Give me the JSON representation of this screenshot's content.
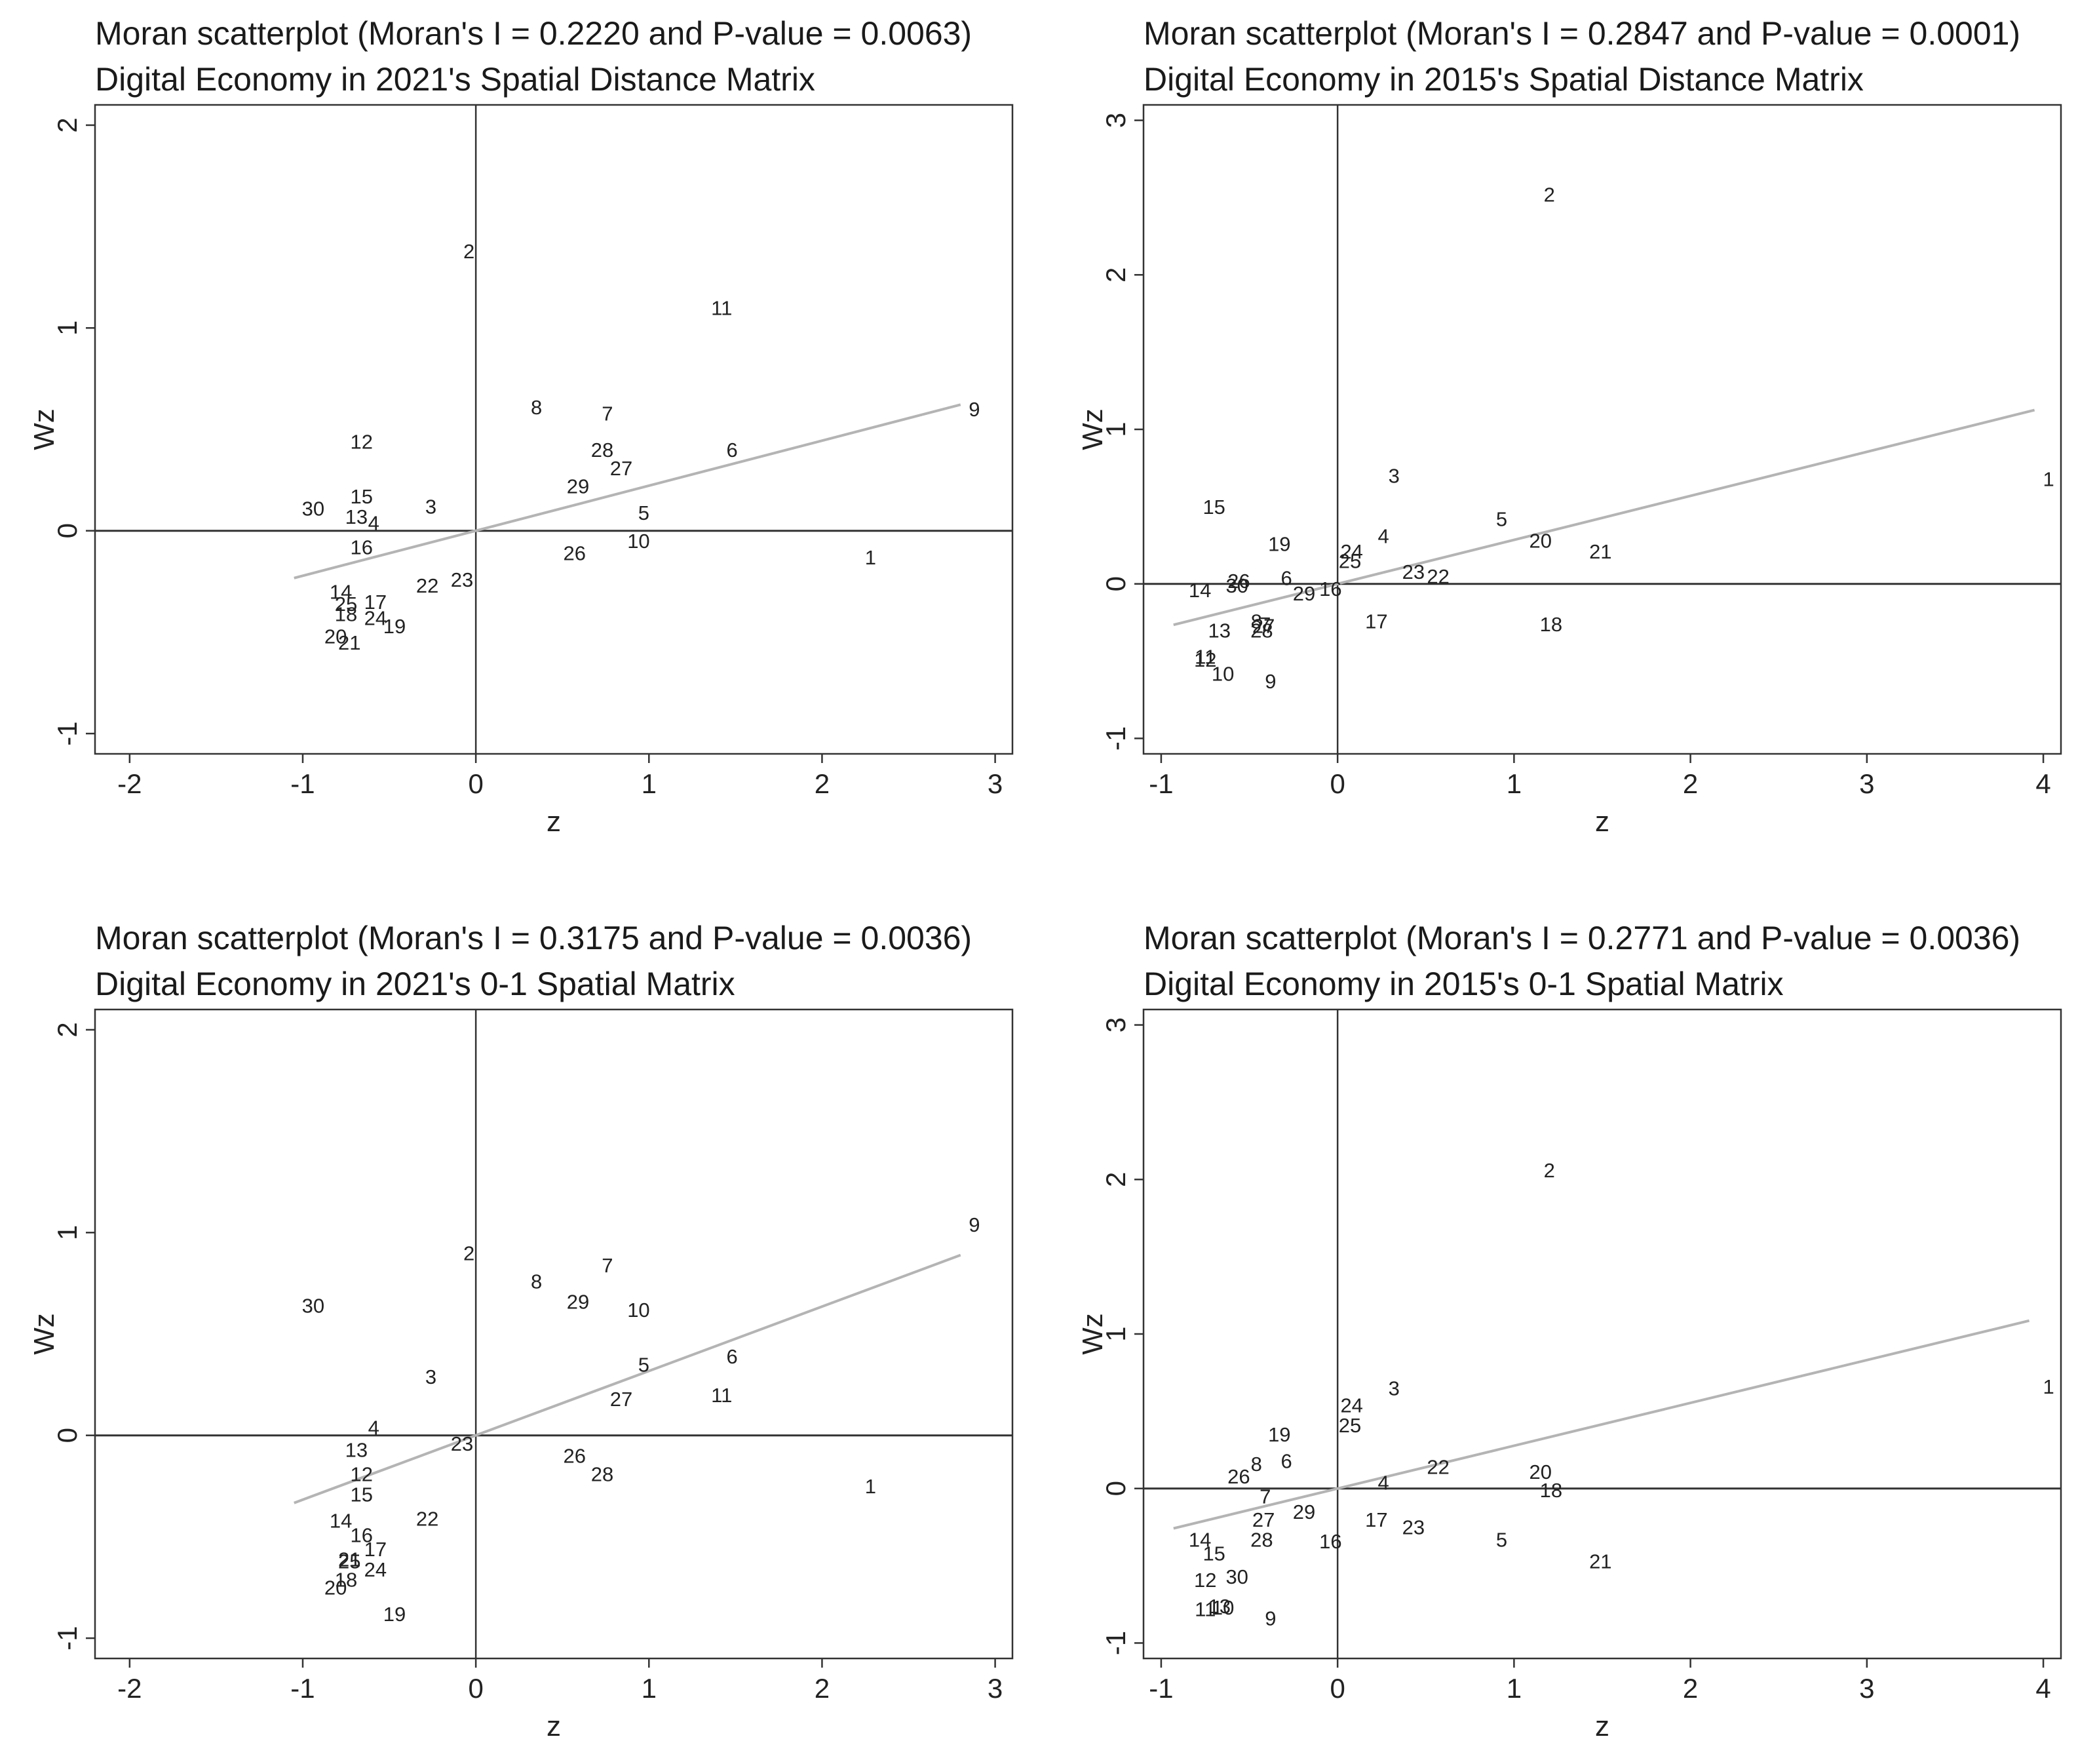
{
  "chart_data": [
    {
      "type": "scatter",
      "title": "Moran scatterplot (Moran's I = 0.2220 and P-value = 0.0063)",
      "subtitle": "Digital Economy in 2021's Spatial Distance Matrix",
      "xlabel": "z",
      "ylabel": "Wz",
      "xlim": [
        -2.2,
        3.1
      ],
      "ylim": [
        -1.1,
        2.1
      ],
      "xticks": [
        "-2",
        "-1",
        "0",
        "1",
        "2",
        "3"
      ],
      "yticks": [
        "-1",
        "0",
        "1",
        "2"
      ],
      "xtick_values": [
        -2,
        -1,
        0,
        1,
        2,
        3
      ],
      "ytick_values": [
        -1,
        0,
        1,
        2
      ],
      "fit_line": {
        "x": [
          -1.05,
          2.8
        ],
        "y": [
          -0.233,
          0.622
        ]
      },
      "points": [
        {
          "label": "1",
          "x": 2.28,
          "y": -0.13
        },
        {
          "label": "2",
          "x": -0.04,
          "y": 1.38
        },
        {
          "label": "3",
          "x": -0.26,
          "y": 0.12
        },
        {
          "label": "4",
          "x": -0.59,
          "y": 0.04
        },
        {
          "label": "5",
          "x": 0.97,
          "y": 0.09
        },
        {
          "label": "6",
          "x": 1.48,
          "y": 0.4
        },
        {
          "label": "7",
          "x": 0.76,
          "y": 0.58
        },
        {
          "label": "8",
          "x": 0.35,
          "y": 0.61
        },
        {
          "label": "9",
          "x": 2.88,
          "y": 0.6
        },
        {
          "label": "10",
          "x": 0.94,
          "y": -0.05
        },
        {
          "label": "11",
          "x": 1.42,
          "y": 1.1
        },
        {
          "label": "12",
          "x": -0.66,
          "y": 0.44
        },
        {
          "label": "13",
          "x": -0.69,
          "y": 0.07
        },
        {
          "label": "14",
          "x": -0.78,
          "y": -0.3
        },
        {
          "label": "15",
          "x": -0.66,
          "y": 0.17
        },
        {
          "label": "16",
          "x": -0.66,
          "y": -0.08
        },
        {
          "label": "17",
          "x": -0.58,
          "y": -0.35
        },
        {
          "label": "18",
          "x": -0.75,
          "y": -0.41
        },
        {
          "label": "19",
          "x": -0.47,
          "y": -0.47
        },
        {
          "label": "20",
          "x": -0.81,
          "y": -0.52
        },
        {
          "label": "21",
          "x": -0.73,
          "y": -0.55
        },
        {
          "label": "22",
          "x": -0.28,
          "y": -0.27
        },
        {
          "label": "23",
          "x": -0.08,
          "y": -0.24
        },
        {
          "label": "24",
          "x": -0.58,
          "y": -0.43
        },
        {
          "label": "25",
          "x": -0.75,
          "y": -0.36
        },
        {
          "label": "26",
          "x": 0.57,
          "y": -0.11
        },
        {
          "label": "27",
          "x": 0.84,
          "y": 0.31
        },
        {
          "label": "28",
          "x": 0.73,
          "y": 0.4
        },
        {
          "label": "29",
          "x": 0.59,
          "y": 0.22
        },
        {
          "label": "30",
          "x": -0.94,
          "y": 0.11
        }
      ]
    },
    {
      "type": "scatter",
      "title": "Moran scatterplot (Moran's I = 0.2847 and P-value = 0.0001)",
      "subtitle": "Digital Economy in 2015's Spatial Distance Matrix",
      "xlabel": "z",
      "ylabel": "Wz",
      "xlim": [
        -1.1,
        4.1
      ],
      "ylim": [
        -1.1,
        3.1
      ],
      "xticks": [
        "-1",
        "0",
        "1",
        "2",
        "3",
        "4"
      ],
      "yticks": [
        "-1",
        "0",
        "1",
        "2",
        "3"
      ],
      "xtick_values": [
        -1,
        0,
        1,
        2,
        3,
        4
      ],
      "ytick_values": [
        -1,
        0,
        1,
        2,
        3
      ],
      "fit_line": {
        "x": [
          -0.93,
          3.95
        ],
        "y": [
          -0.265,
          1.125
        ]
      },
      "points": [
        {
          "label": "1",
          "x": 4.03,
          "y": 0.68
        },
        {
          "label": "2",
          "x": 1.2,
          "y": 2.52
        },
        {
          "label": "3",
          "x": 0.32,
          "y": 0.7
        },
        {
          "label": "4",
          "x": 0.26,
          "y": 0.31
        },
        {
          "label": "5",
          "x": 0.93,
          "y": 0.42
        },
        {
          "label": "6",
          "x": -0.29,
          "y": 0.04
        },
        {
          "label": "7",
          "x": -0.41,
          "y": -0.26
        },
        {
          "label": "8",
          "x": -0.46,
          "y": -0.24
        },
        {
          "label": "9",
          "x": -0.38,
          "y": -0.63
        },
        {
          "label": "10",
          "x": -0.65,
          "y": -0.58
        },
        {
          "label": "11",
          "x": -0.75,
          "y": -0.47
        },
        {
          "label": "12",
          "x": -0.75,
          "y": -0.49
        },
        {
          "label": "13",
          "x": -0.67,
          "y": -0.3
        },
        {
          "label": "14",
          "x": -0.78,
          "y": -0.04
        },
        {
          "label": "15",
          "x": -0.7,
          "y": 0.5
        },
        {
          "label": "16",
          "x": -0.04,
          "y": -0.03
        },
        {
          "label": "17",
          "x": 0.22,
          "y": -0.24
        },
        {
          "label": "18",
          "x": 1.21,
          "y": -0.26
        },
        {
          "label": "19",
          "x": -0.33,
          "y": 0.26
        },
        {
          "label": "20",
          "x": 1.15,
          "y": 0.28
        },
        {
          "label": "21",
          "x": 1.49,
          "y": 0.21
        },
        {
          "label": "22",
          "x": 0.57,
          "y": 0.05
        },
        {
          "label": "23",
          "x": 0.43,
          "y": 0.08
        },
        {
          "label": "24",
          "x": 0.08,
          "y": 0.21
        },
        {
          "label": "25",
          "x": 0.07,
          "y": 0.15
        },
        {
          "label": "26",
          "x": -0.56,
          "y": 0.02
        },
        {
          "label": "27",
          "x": -0.42,
          "y": -0.27
        },
        {
          "label": "28",
          "x": -0.43,
          "y": -0.3
        },
        {
          "label": "29",
          "x": -0.19,
          "y": -0.06
        },
        {
          "label": "30",
          "x": -0.57,
          "y": -0.01
        }
      ]
    },
    {
      "type": "scatter",
      "title": "Moran scatterplot (Moran's I = 0.3175 and P-value = 0.0036)",
      "subtitle": "Digital Economy in 2021's 0-1 Spatial Matrix",
      "xlabel": "z",
      "ylabel": "Wz",
      "xlim": [
        -2.2,
        3.1
      ],
      "ylim": [
        -1.1,
        2.1
      ],
      "xticks": [
        "-2",
        "-1",
        "0",
        "1",
        "2",
        "3"
      ],
      "yticks": [
        "-1",
        "0",
        "1",
        "2"
      ],
      "xtick_values": [
        -2,
        -1,
        0,
        1,
        2,
        3
      ],
      "ytick_values": [
        -1,
        0,
        1,
        2
      ],
      "fit_line": {
        "x": [
          -1.05,
          2.8
        ],
        "y": [
          -0.333,
          0.889
        ]
      },
      "points": [
        {
          "label": "1",
          "x": 2.28,
          "y": -0.25
        },
        {
          "label": "2",
          "x": -0.04,
          "y": 0.9
        },
        {
          "label": "3",
          "x": -0.26,
          "y": 0.29
        },
        {
          "label": "4",
          "x": -0.59,
          "y": 0.04
        },
        {
          "label": "5",
          "x": 0.97,
          "y": 0.35
        },
        {
          "label": "6",
          "x": 1.48,
          "y": 0.39
        },
        {
          "label": "7",
          "x": 0.76,
          "y": 0.84
        },
        {
          "label": "8",
          "x": 0.35,
          "y": 0.76
        },
        {
          "label": "9",
          "x": 2.88,
          "y": 1.04
        },
        {
          "label": "10",
          "x": 0.94,
          "y": 0.62
        },
        {
          "label": "11",
          "x": 1.42,
          "y": 0.2
        },
        {
          "label": "12",
          "x": -0.66,
          "y": -0.19
        },
        {
          "label": "13",
          "x": -0.69,
          "y": -0.07
        },
        {
          "label": "14",
          "x": -0.78,
          "y": -0.42
        },
        {
          "label": "15",
          "x": -0.66,
          "y": -0.29
        },
        {
          "label": "16",
          "x": -0.66,
          "y": -0.49
        },
        {
          "label": "17",
          "x": -0.58,
          "y": -0.56
        },
        {
          "label": "18",
          "x": -0.75,
          "y": -0.71
        },
        {
          "label": "19",
          "x": -0.47,
          "y": -0.88
        },
        {
          "label": "20",
          "x": -0.81,
          "y": -0.75
        },
        {
          "label": "21",
          "x": -0.73,
          "y": -0.61
        },
        {
          "label": "22",
          "x": -0.28,
          "y": -0.41
        },
        {
          "label": "23",
          "x": -0.08,
          "y": -0.04
        },
        {
          "label": "24",
          "x": -0.58,
          "y": -0.66
        },
        {
          "label": "25",
          "x": -0.73,
          "y": -0.62
        },
        {
          "label": "26",
          "x": 0.57,
          "y": -0.1
        },
        {
          "label": "27",
          "x": 0.84,
          "y": 0.18
        },
        {
          "label": "28",
          "x": 0.73,
          "y": -0.19
        },
        {
          "label": "29",
          "x": 0.59,
          "y": 0.66
        },
        {
          "label": "30",
          "x": -0.94,
          "y": 0.64
        }
      ]
    },
    {
      "type": "scatter",
      "title": "Moran scatterplot (Moran's I = 0.2771 and P-value = 0.0036)",
      "subtitle": "Digital Economy in 2015's 0-1 Spatial Matrix",
      "xlabel": "z",
      "ylabel": "Wz",
      "xlim": [
        -1.1,
        4.1
      ],
      "ylim": [
        -1.1,
        3.1
      ],
      "xticks": [
        "-1",
        "0",
        "1",
        "2",
        "3",
        "4"
      ],
      "yticks": [
        "-1",
        "0",
        "1",
        "2",
        "3"
      ],
      "xtick_values": [
        -1,
        0,
        1,
        2,
        3,
        4
      ],
      "ytick_values": [
        -1,
        0,
        1,
        2,
        3
      ],
      "fit_line": {
        "x": [
          -0.93,
          3.92
        ],
        "y": [
          -0.258,
          1.086
        ]
      },
      "points": [
        {
          "label": "1",
          "x": 4.03,
          "y": 0.66
        },
        {
          "label": "2",
          "x": 1.2,
          "y": 2.06
        },
        {
          "label": "3",
          "x": 0.32,
          "y": 0.65
        },
        {
          "label": "4",
          "x": 0.26,
          "y": 0.04
        },
        {
          "label": "5",
          "x": 0.93,
          "y": -0.33
        },
        {
          "label": "6",
          "x": -0.29,
          "y": 0.18
        },
        {
          "label": "7",
          "x": -0.41,
          "y": -0.05
        },
        {
          "label": "8",
          "x": -0.46,
          "y": 0.16
        },
        {
          "label": "9",
          "x": -0.38,
          "y": -0.84
        },
        {
          "label": "10",
          "x": -0.65,
          "y": -0.77
        },
        {
          "label": "11",
          "x": -0.75,
          "y": -0.78
        },
        {
          "label": "12",
          "x": -0.75,
          "y": -0.59
        },
        {
          "label": "13",
          "x": -0.67,
          "y": -0.76
        },
        {
          "label": "14",
          "x": -0.78,
          "y": -0.33
        },
        {
          "label": "15",
          "x": -0.7,
          "y": -0.42
        },
        {
          "label": "16",
          "x": -0.04,
          "y": -0.34
        },
        {
          "label": "17",
          "x": 0.22,
          "y": -0.2
        },
        {
          "label": "18",
          "x": 1.21,
          "y": -0.01
        },
        {
          "label": "19",
          "x": -0.33,
          "y": 0.35
        },
        {
          "label": "20",
          "x": 1.15,
          "y": 0.11
        },
        {
          "label": "21",
          "x": 1.49,
          "y": -0.47
        },
        {
          "label": "22",
          "x": 0.57,
          "y": 0.14
        },
        {
          "label": "23",
          "x": 0.43,
          "y": -0.25
        },
        {
          "label": "24",
          "x": 0.08,
          "y": 0.54
        },
        {
          "label": "25",
          "x": 0.07,
          "y": 0.41
        },
        {
          "label": "26",
          "x": -0.56,
          "y": 0.08
        },
        {
          "label": "27",
          "x": -0.42,
          "y": -0.2
        },
        {
          "label": "28",
          "x": -0.43,
          "y": -0.33
        },
        {
          "label": "29",
          "x": -0.19,
          "y": -0.15
        },
        {
          "label": "30",
          "x": -0.57,
          "y": -0.57
        }
      ]
    }
  ],
  "colors": {
    "fit_line": "#b4b4b4",
    "axis": "#333333",
    "text": "#222222",
    "background": "#ffffff"
  }
}
